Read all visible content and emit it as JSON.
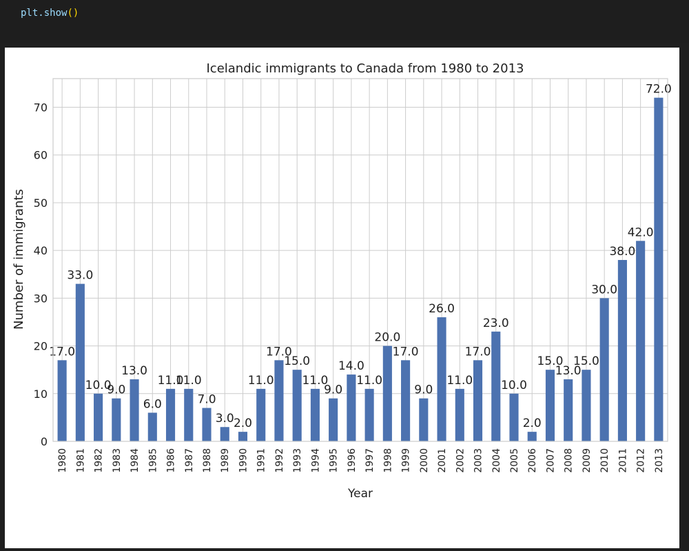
{
  "code_cell": {
    "code_object": "plt.",
    "code_method": "show",
    "code_parens": "()"
  },
  "chart_data": {
    "type": "bar",
    "title": "Icelandic immigrants to Canada from 1980 to 2013",
    "xlabel": "Year",
    "ylabel": "Number of immigrants",
    "ylim": [
      0,
      76
    ],
    "yticks": [
      0,
      10,
      20,
      30,
      40,
      50,
      60,
      70
    ],
    "grid": true,
    "bar_color": "#4c72b0",
    "categories": [
      "1980",
      "1981",
      "1982",
      "1983",
      "1984",
      "1985",
      "1986",
      "1987",
      "1988",
      "1989",
      "1990",
      "1991",
      "1992",
      "1993",
      "1994",
      "1995",
      "1996",
      "1997",
      "1998",
      "1999",
      "2000",
      "2001",
      "2002",
      "2003",
      "2004",
      "2005",
      "2006",
      "2007",
      "2008",
      "2009",
      "2010",
      "2011",
      "2012",
      "2013"
    ],
    "values": [
      17,
      33,
      10,
      9,
      13,
      6,
      11,
      11,
      7,
      3,
      2,
      11,
      17,
      15,
      11,
      9,
      14,
      11,
      20,
      17,
      9,
      26,
      11,
      17,
      23,
      10,
      2,
      15,
      13,
      15,
      30,
      38,
      42,
      72
    ],
    "value_labels": [
      "17.0",
      "33.0",
      "10.0",
      "9.0",
      "13.0",
      "6.0",
      "11.0",
      "11.0",
      "7.0",
      "3.0",
      "2.0",
      "11.0",
      "17.0",
      "15.0",
      "11.0",
      "9.0",
      "14.0",
      "11.0",
      "20.0",
      "17.0",
      "9.0",
      "26.0",
      "11.0",
      "17.0",
      "23.0",
      "10.0",
      "2.0",
      "15.0",
      "13.0",
      "15.0",
      "30.0",
      "38.0",
      "42.0",
      "72.0"
    ]
  }
}
